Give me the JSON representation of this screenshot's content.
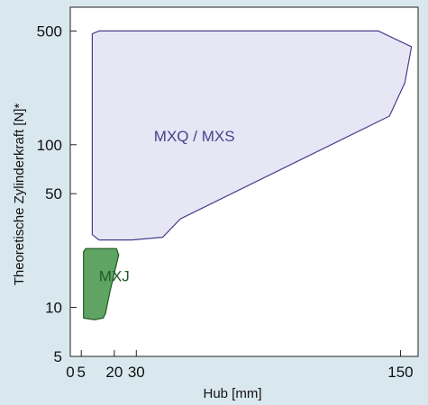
{
  "chart_data": {
    "type": "area",
    "xlabel": "Hub [mm]",
    "ylabel": "Theoretische Zylinderkraft [N]*",
    "x_ticks": [
      "0",
      "5",
      "20",
      "30",
      "150"
    ],
    "x_tick_values": [
      0,
      5,
      20,
      30,
      150
    ],
    "y_ticks": [
      "5",
      "10",
      "50",
      "100",
      "500"
    ],
    "y_tick_values": [
      5,
      10,
      50,
      100,
      500
    ],
    "y_scale": "log",
    "xlim": [
      0,
      158
    ],
    "ylim": [
      5,
      700
    ],
    "grid": false,
    "regions": [
      {
        "name": "MXQ / MXS",
        "fill": "#e6e6f4",
        "stroke": "#4a3f8c",
        "label_color": "#4a3f8c",
        "label_at": [
          38,
          105
        ],
        "points": [
          [
            10,
            28
          ],
          [
            10,
            480
          ],
          [
            13,
            500
          ],
          [
            140,
            500
          ],
          [
            155,
            400
          ],
          [
            152,
            240
          ],
          [
            145,
            150
          ],
          [
            50,
            35
          ],
          [
            42,
            27
          ],
          [
            28,
            26
          ],
          [
            13,
            26
          ]
        ]
      },
      {
        "name": "MXJ",
        "fill": "#5fa463",
        "stroke": "#1e5a23",
        "label_color": "#1e5a23",
        "label_at": [
          13,
          14.5
        ],
        "points": [
          [
            6,
            8.6
          ],
          [
            6,
            22
          ],
          [
            7,
            23
          ],
          [
            21,
            23
          ],
          [
            22,
            21
          ],
          [
            18,
            12.5
          ],
          [
            16,
            9.2
          ],
          [
            15,
            8.6
          ],
          [
            11,
            8.4
          ]
        ]
      }
    ]
  }
}
